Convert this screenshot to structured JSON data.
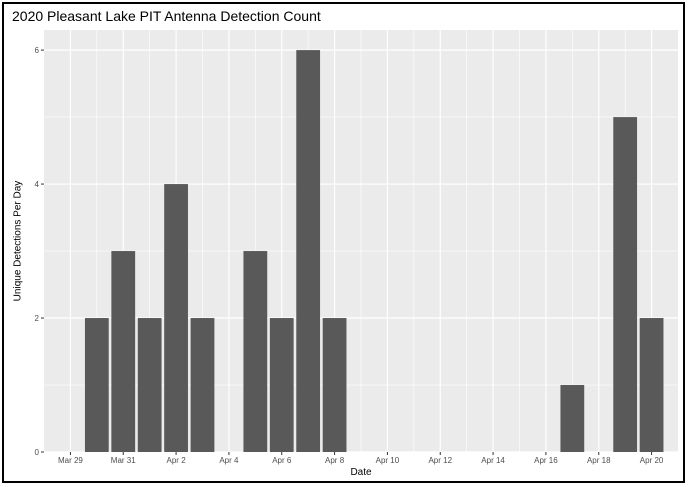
{
  "chart_data": {
    "type": "bar",
    "title": "2020 Pleasant Lake PIT Antenna Detection Count",
    "xlabel": "Date",
    "ylabel": "Unique Detections Per Day",
    "x_dates": [
      "2020-03-30",
      "2020-03-31",
      "2020-04-01",
      "2020-04-02",
      "2020-04-03",
      "2020-04-05",
      "2020-04-06",
      "2020-04-07",
      "2020-04-08",
      "2020-04-17",
      "2020-04-19",
      "2020-04-20"
    ],
    "values": [
      2,
      3,
      2,
      4,
      2,
      3,
      2,
      6,
      2,
      1,
      5,
      2
    ],
    "x_ticks": [
      {
        "date": "2020-03-29",
        "label": "Mar 29"
      },
      {
        "date": "2020-03-31",
        "label": "Mar 31"
      },
      {
        "date": "2020-04-02",
        "label": "Apr 2"
      },
      {
        "date": "2020-04-04",
        "label": "Apr 4"
      },
      {
        "date": "2020-04-06",
        "label": "Apr 6"
      },
      {
        "date": "2020-04-08",
        "label": "Apr 8"
      },
      {
        "date": "2020-04-10",
        "label": "Apr 10"
      },
      {
        "date": "2020-04-12",
        "label": "Apr 12"
      },
      {
        "date": "2020-04-14",
        "label": "Apr 14"
      },
      {
        "date": "2020-04-16",
        "label": "Apr 16"
      },
      {
        "date": "2020-04-18",
        "label": "Apr 18"
      },
      {
        "date": "2020-04-20",
        "label": "Apr 20"
      }
    ],
    "y_ticks": [
      0,
      2,
      4,
      6
    ],
    "ylim": [
      0,
      6.3
    ],
    "xlim": [
      "2020-03-28",
      "2020-04-21"
    ],
    "grid": true,
    "bar_color": "#595959",
    "panel_color": "#ebebeb",
    "grid_color": "#ffffff"
  }
}
